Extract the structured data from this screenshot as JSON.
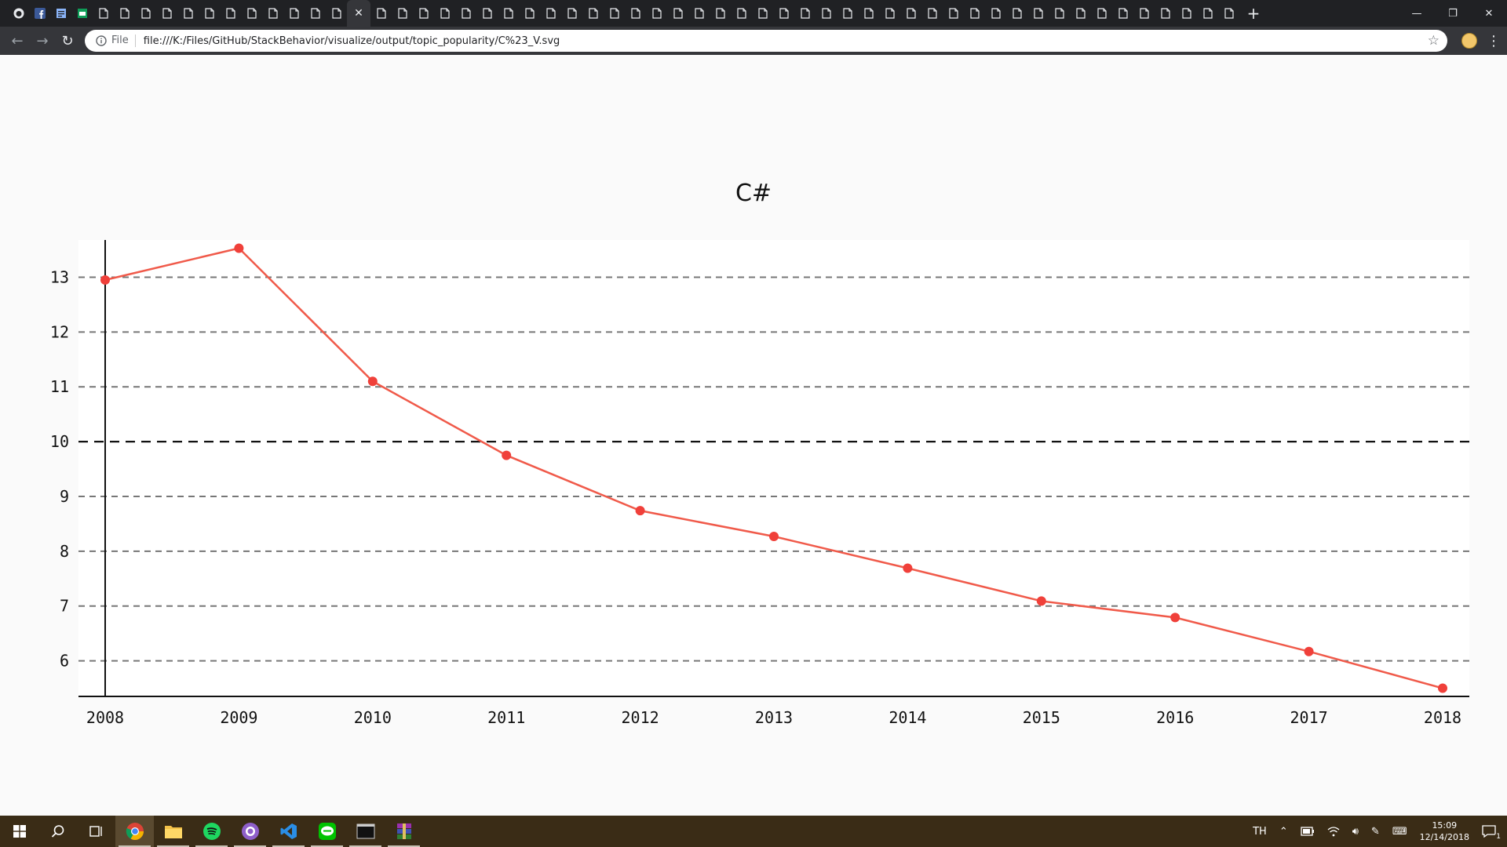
{
  "browser": {
    "tab_count": 58,
    "address_scheme": "File",
    "address_url": "file:///K:/Files/GitHub/StackBehavior/visualize/output/topic_popularity/C%23_V.svg"
  },
  "chart_data": {
    "type": "line",
    "title": "C#",
    "xlabel": "",
    "ylabel": "",
    "x": [
      "2008",
      "2009",
      "2010",
      "2011",
      "2012",
      "2013",
      "2014",
      "2015",
      "2016",
      "2017",
      "2018"
    ],
    "series": [
      {
        "values": [
          12.95,
          13.53,
          11.1,
          9.75,
          8.74,
          8.27,
          7.69,
          7.09,
          6.79,
          6.17,
          5.5
        ]
      }
    ],
    "ylim": [
      5.35,
      13.68
    ],
    "yticks": [
      6,
      7,
      8,
      9,
      10,
      11,
      12,
      13
    ],
    "highlight_y": 10,
    "grid": true,
    "line_color": "#f05a4a",
    "point_color": "#f0403a"
  },
  "taskbar": {
    "language": "TH",
    "time": "15:09",
    "date": "12/14/2018",
    "notifications": "1"
  }
}
